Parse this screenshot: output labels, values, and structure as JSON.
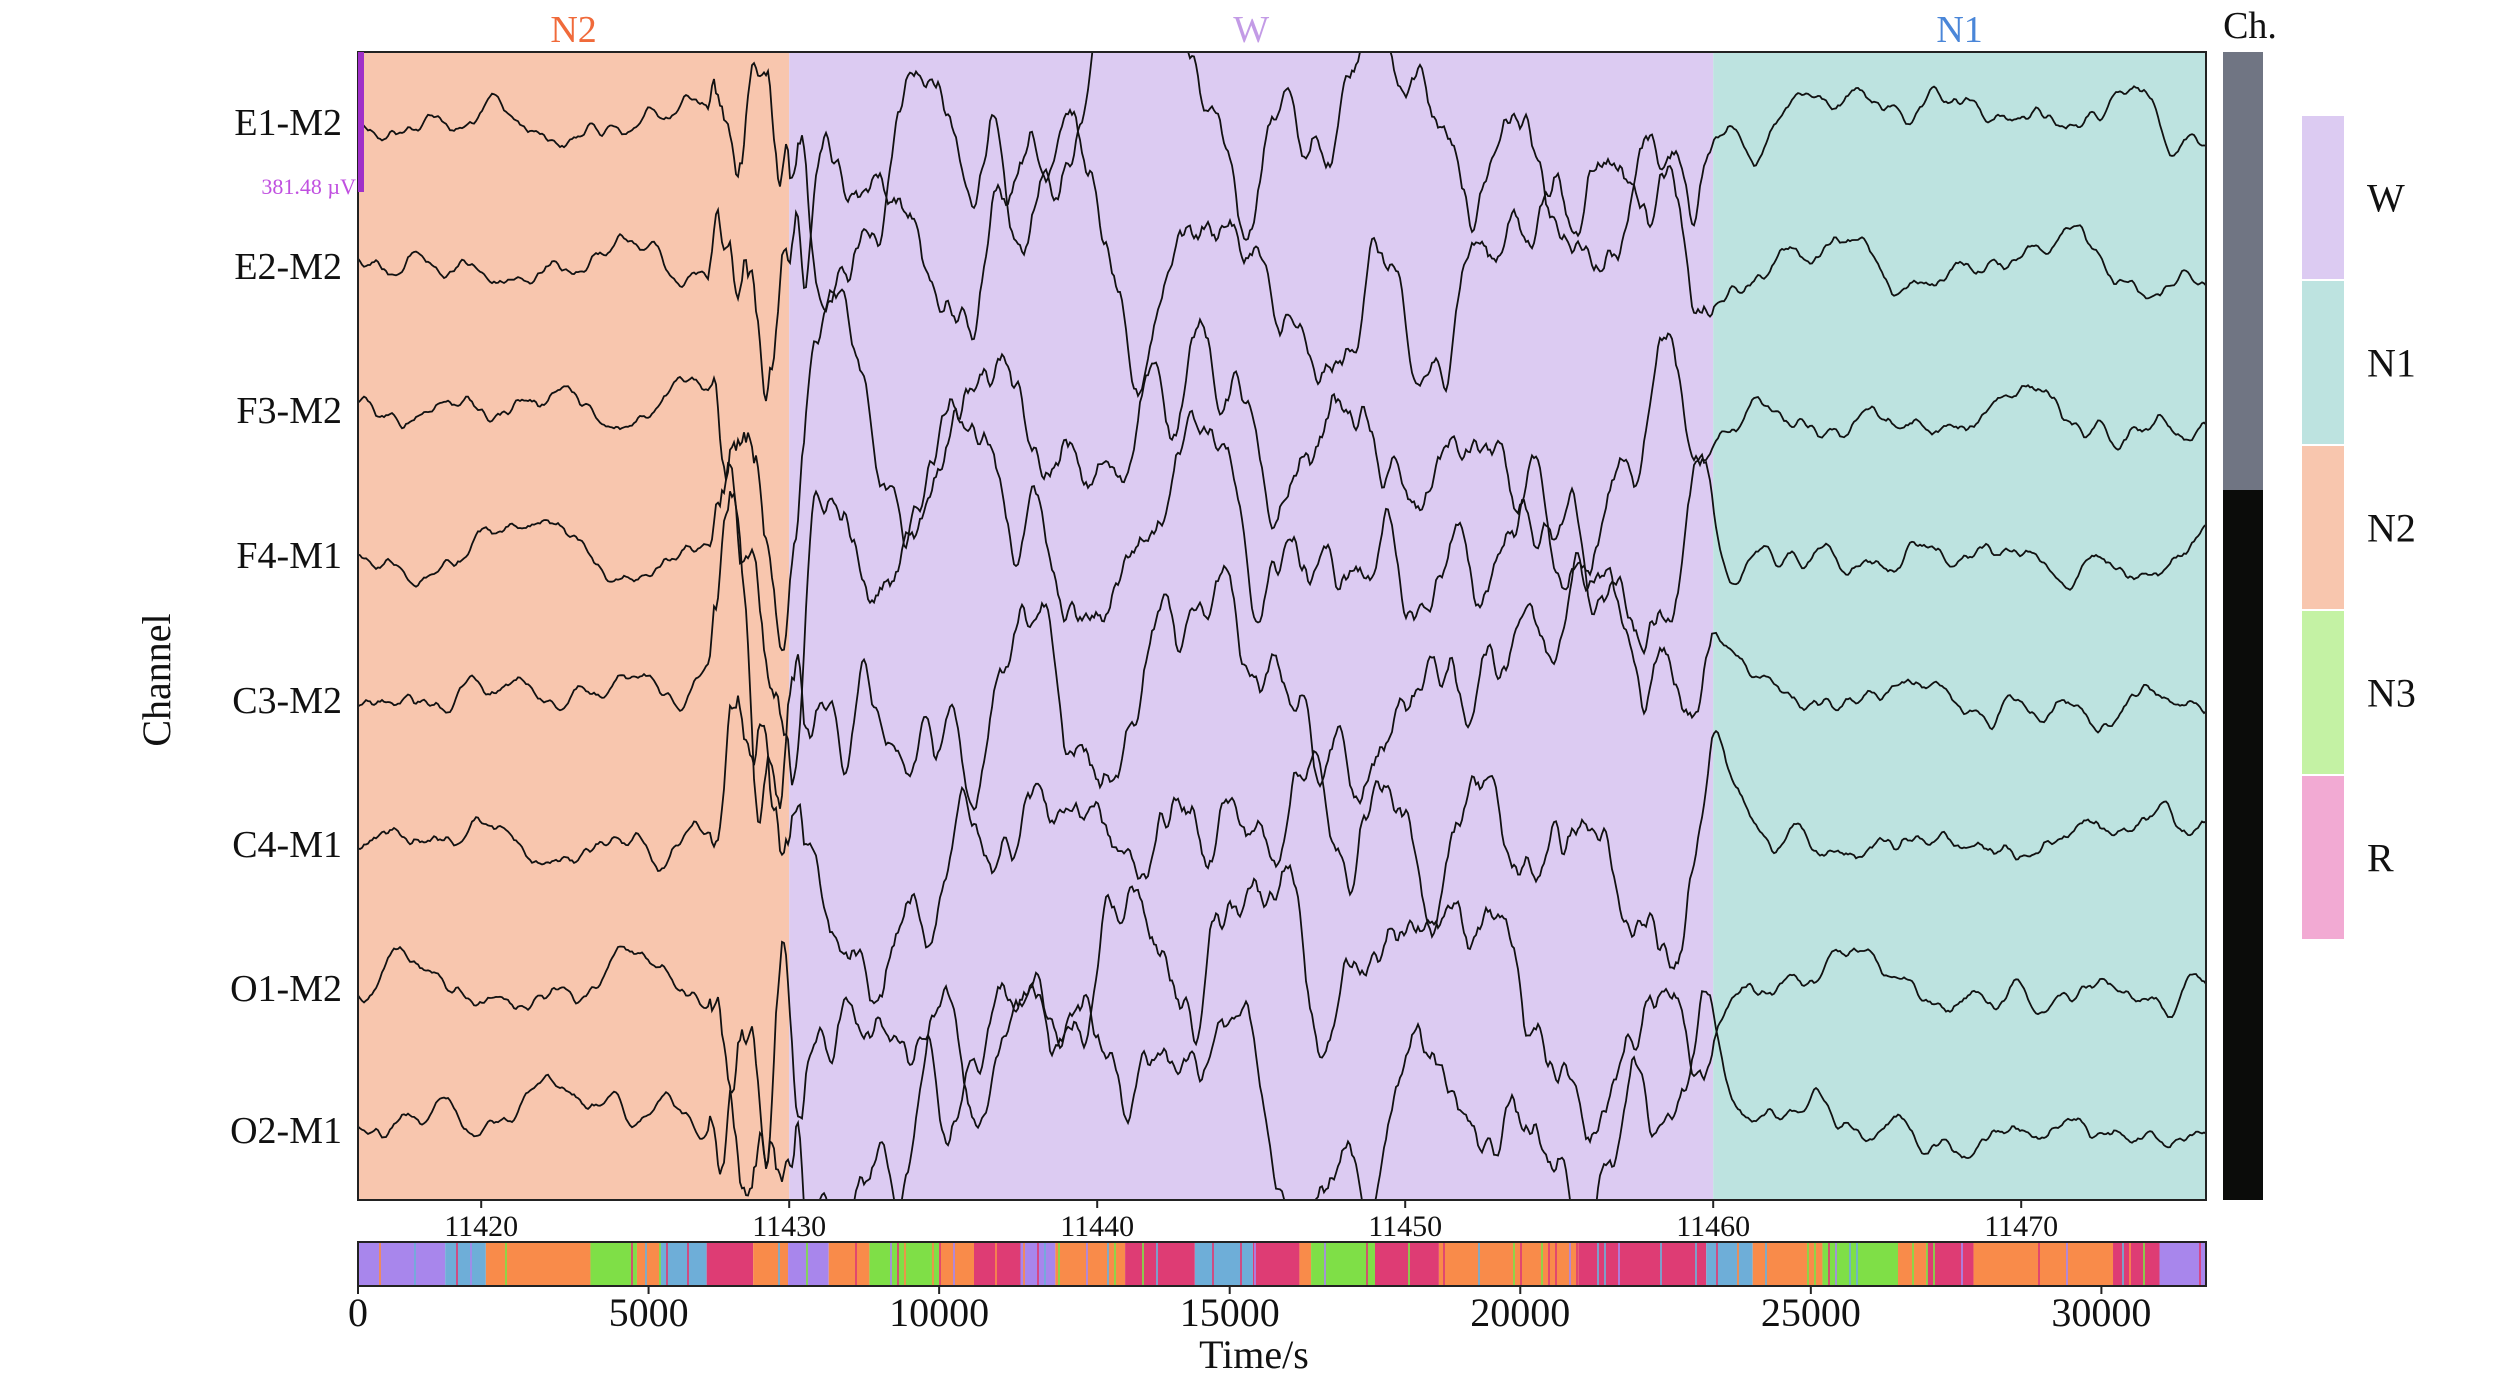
{
  "chart_data": {
    "type": "line",
    "ylabel": "Channel",
    "xlabel": "Time/s",
    "channels": [
      "E1-M2",
      "E2-M2",
      "F3-M2",
      "F4-M1",
      "C3-M2",
      "C4-M1",
      "O1-M2",
      "O2-M1"
    ],
    "scale_bar_label": "381.48 µV",
    "epoch_window": {
      "xlim": [
        11416,
        11476
      ],
      "ticks": [
        11420,
        11430,
        11440,
        11450,
        11460,
        11470
      ],
      "segments": [
        {
          "stage": "N2",
          "start": 11416,
          "end": 11430
        },
        {
          "stage": "W",
          "start": 11430,
          "end": 11460
        },
        {
          "stage": "N1",
          "start": 11460,
          "end": 11476
        }
      ]
    },
    "hypnogram": {
      "xlim": [
        0,
        31800
      ],
      "ticks": [
        0,
        5000,
        10000,
        15000,
        20000,
        25000,
        30000
      ],
      "segments": [
        {
          "stage": "W",
          "start": 0,
          "end": 1500
        },
        {
          "stage": "N1",
          "start": 1500,
          "end": 2200
        },
        {
          "stage": "N2",
          "start": 2200,
          "end": 4000
        },
        {
          "stage": "N3",
          "start": 4000,
          "end": 4800
        },
        {
          "stage": "N2",
          "start": 4800,
          "end": 5200
        },
        {
          "stage": "N1",
          "start": 5200,
          "end": 6000
        },
        {
          "stage": "R",
          "start": 6000,
          "end": 6800
        },
        {
          "stage": "N2",
          "start": 6800,
          "end": 7400
        },
        {
          "stage": "W",
          "start": 7400,
          "end": 8100
        },
        {
          "stage": "N2",
          "start": 8100,
          "end": 8800
        },
        {
          "stage": "N3",
          "start": 8800,
          "end": 10000
        },
        {
          "stage": "N2",
          "start": 10000,
          "end": 10600
        },
        {
          "stage": "R",
          "start": 10600,
          "end": 11400
        },
        {
          "stage": "W",
          "start": 11400,
          "end": 12000
        },
        {
          "stage": "N2",
          "start": 12000,
          "end": 13200
        },
        {
          "stage": "R",
          "start": 13200,
          "end": 14400
        },
        {
          "stage": "N1",
          "start": 14400,
          "end": 15400
        },
        {
          "stage": "R",
          "start": 15400,
          "end": 16200
        },
        {
          "stage": "N2",
          "start": 16200,
          "end": 16400
        },
        {
          "stage": "N3",
          "start": 16400,
          "end": 17500
        },
        {
          "stage": "R",
          "start": 17500,
          "end": 18600
        },
        {
          "stage": "N2",
          "start": 18600,
          "end": 21000
        },
        {
          "stage": "R",
          "start": 21000,
          "end": 23200
        },
        {
          "stage": "N1",
          "start": 23200,
          "end": 24000
        },
        {
          "stage": "N2",
          "start": 24000,
          "end": 25200
        },
        {
          "stage": "N3",
          "start": 25200,
          "end": 26500
        },
        {
          "stage": "N2",
          "start": 26500,
          "end": 27000
        },
        {
          "stage": "R",
          "start": 27000,
          "end": 27800
        },
        {
          "stage": "N2",
          "start": 27800,
          "end": 30200
        },
        {
          "stage": "R",
          "start": 30200,
          "end": 31000
        },
        {
          "stage": "W",
          "start": 31000,
          "end": 31800
        }
      ]
    },
    "channel_bar_label": "Ch.",
    "legend": {
      "placement": "right",
      "entries": [
        {
          "stage": "W",
          "label": "W",
          "color": "#dccbf2"
        },
        {
          "stage": "N1",
          "label": "N1",
          "color": "#bde3e0"
        },
        {
          "stage": "N2",
          "label": "N2",
          "color": "#f8c6ae"
        },
        {
          "stage": "N3",
          "label": "N3",
          "color": "#c4f2a4"
        },
        {
          "stage": "R",
          "label": "R",
          "color": "#f2aad3"
        }
      ]
    },
    "colors": {
      "bg_W": "#dccbf2",
      "bg_N1": "#bde3e0",
      "bg_N2": "#f8c6ae",
      "label_W": "#c39be6",
      "label_N1": "#4a86d8",
      "label_N2": "#f06a3a",
      "hyp_W": "#a886ec",
      "hyp_N1": "#6eaed8",
      "hyp_N2": "#f98b4a",
      "hyp_N3": "#7fdf47",
      "hyp_R": "#de3c74",
      "channel_bar_top": "#707583",
      "channel_bar_bottom": "#0b0c0a",
      "scale_bar": "#a030c8",
      "scale_label": "#c050e0",
      "signal": "#111111"
    }
  }
}
